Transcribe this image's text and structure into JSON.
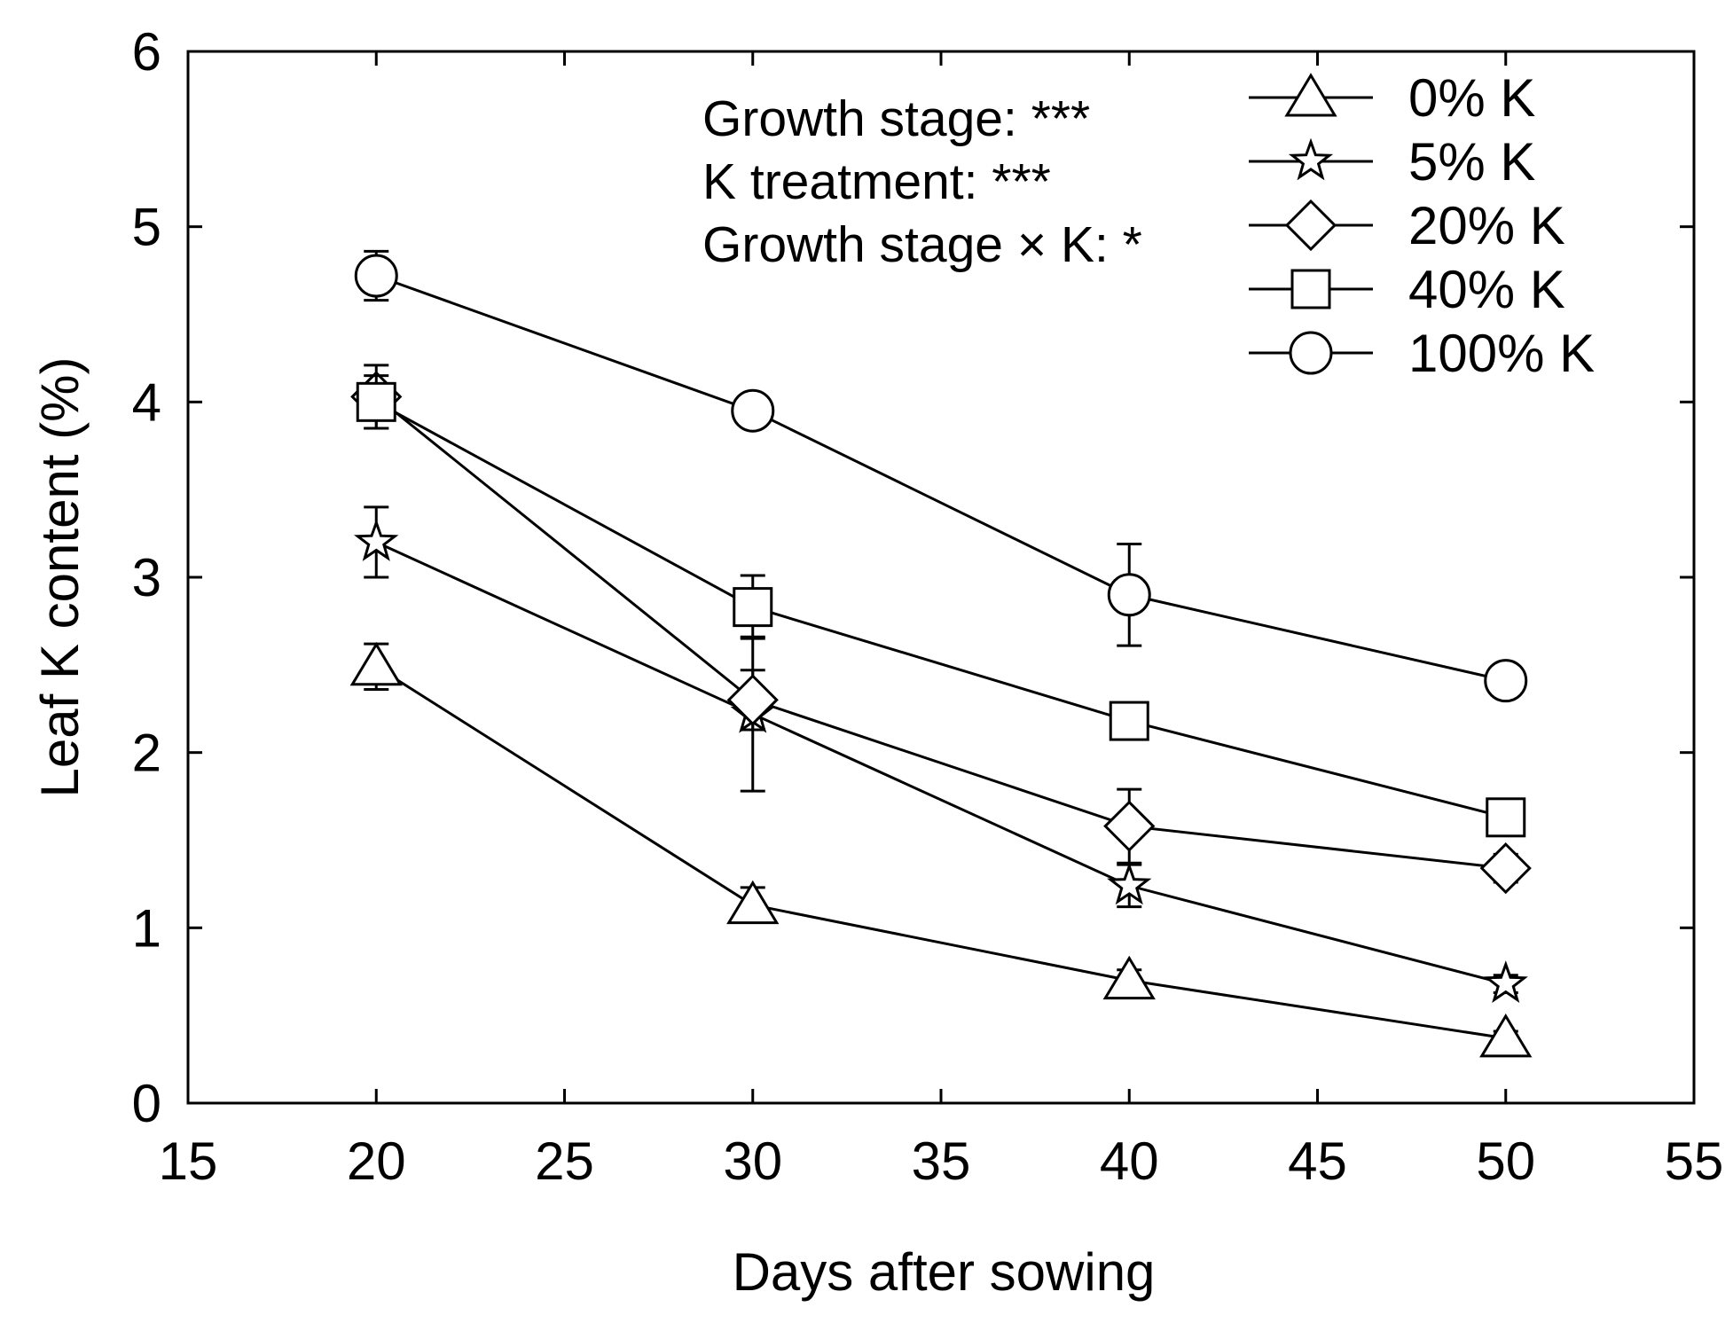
{
  "chart_data": {
    "type": "line",
    "title": "",
    "xlabel": "Days after sowing",
    "ylabel": "Leaf K content (%)",
    "xlim": [
      15,
      55
    ],
    "ylim": [
      0,
      6
    ],
    "xticks": [
      15,
      20,
      25,
      30,
      35,
      40,
      45,
      50,
      55
    ],
    "yticks": [
      0,
      1,
      2,
      3,
      4,
      5,
      6
    ],
    "grid": false,
    "legend_position": "top-right",
    "x": [
      20,
      30,
      40,
      50
    ],
    "series": [
      {
        "name": "0% K",
        "marker": "triangle",
        "values": [
          2.49,
          1.13,
          0.7,
          0.37
        ],
        "errors": [
          0.13,
          0.1,
          0.06,
          0.04
        ]
      },
      {
        "name": "5% K",
        "marker": "star",
        "values": [
          3.2,
          2.22,
          1.24,
          0.68
        ],
        "errors": [
          0.2,
          0.44,
          0.12,
          0.05
        ]
      },
      {
        "name": "20% K",
        "marker": "diamond",
        "values": [
          4.03,
          2.3,
          1.58,
          1.34
        ],
        "errors": [
          0.18,
          0.17,
          0.21,
          0.08
        ]
      },
      {
        "name": "40% K",
        "marker": "square",
        "values": [
          4.0,
          2.83,
          2.18,
          1.63
        ],
        "errors": [
          0.15,
          0.18,
          0.07,
          0.05
        ]
      },
      {
        "name": "100% K",
        "marker": "circle",
        "values": [
          4.72,
          3.95,
          2.9,
          2.41
        ],
        "errors": [
          0.14,
          0.06,
          0.29,
          0.04
        ]
      }
    ],
    "annotations": [
      "Growth stage: ***",
      "K treatment: ***",
      "Growth stage × K: *"
    ]
  }
}
